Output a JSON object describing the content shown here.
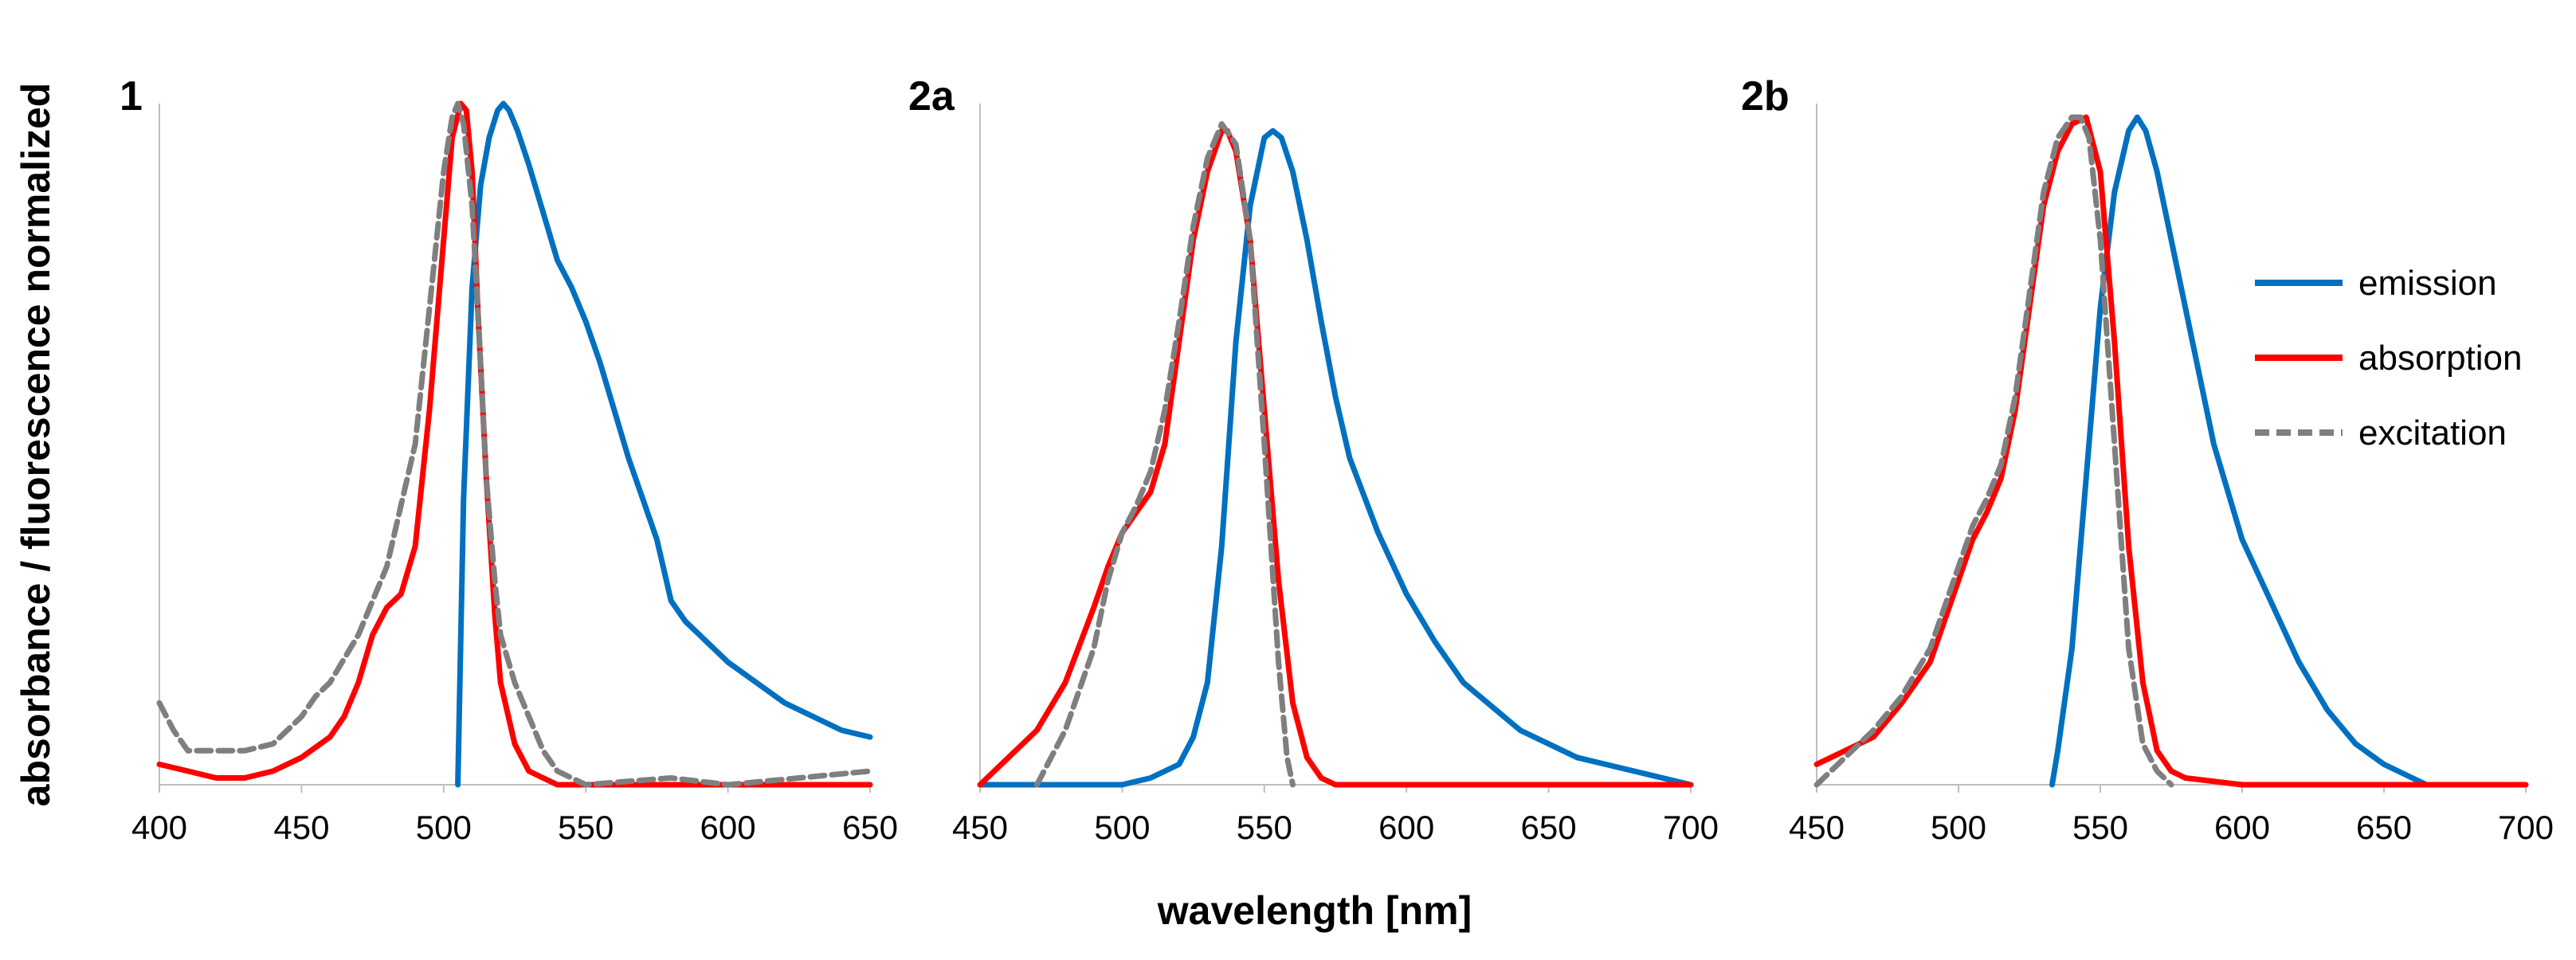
{
  "ylabel": "absorbance / fluorescence normalized",
  "xlabel": "wavelength [nm]",
  "colors": {
    "emission": "#0070C0",
    "absorption": "#FF0000",
    "excitation": "#7F7F7F"
  },
  "legend": {
    "placement": "right of panel 2b",
    "items": [
      {
        "name": "emission",
        "color": "#0070C0",
        "style": "solid"
      },
      {
        "name": "absorption",
        "color": "#FF0000",
        "style": "solid"
      },
      {
        "name": "excitation",
        "color": "#7F7F7F",
        "style": "dashed"
      }
    ]
  },
  "chart_data": [
    {
      "type": "line",
      "panel_label": "1",
      "xlim": [
        400,
        650
      ],
      "ylim": [
        0,
        1
      ],
      "xticks": [
        "400",
        "450",
        "500",
        "550",
        "600",
        "650"
      ],
      "grid": false,
      "series": [
        {
          "name": "emission",
          "color": "#0070C0",
          "dash": false,
          "x": [
            505,
            507,
            510,
            513,
            516,
            519,
            521,
            523,
            526,
            530,
            535,
            540,
            545,
            550,
            555,
            560,
            565,
            570,
            575,
            580,
            585,
            590,
            600,
            610,
            620,
            630,
            640,
            650
          ],
          "y": [
            0.0,
            0.42,
            0.73,
            0.88,
            0.95,
            0.99,
            1.0,
            0.99,
            0.96,
            0.91,
            0.84,
            0.77,
            0.73,
            0.68,
            0.62,
            0.55,
            0.48,
            0.42,
            0.36,
            0.27,
            0.24,
            0.22,
            0.18,
            0.15,
            0.12,
            0.1,
            0.08,
            0.07
          ]
        },
        {
          "name": "absorption",
          "color": "#FF0000",
          "dash": false,
          "x": [
            400,
            410,
            420,
            430,
            440,
            450,
            460,
            465,
            470,
            475,
            480,
            485,
            490,
            495,
            500,
            503,
            506,
            508,
            510,
            512,
            515,
            518,
            520,
            525,
            530,
            535,
            540,
            550,
            600,
            650
          ],
          "y": [
            0.03,
            0.02,
            0.01,
            0.01,
            0.02,
            0.04,
            0.07,
            0.1,
            0.15,
            0.22,
            0.26,
            0.28,
            0.35,
            0.55,
            0.8,
            0.95,
            1.0,
            0.99,
            0.9,
            0.7,
            0.45,
            0.25,
            0.15,
            0.06,
            0.02,
            0.01,
            0.0,
            0.0,
            0.0,
            0.0
          ]
        },
        {
          "name": "excitation",
          "color": "#7F7F7F",
          "dash": true,
          "x": [
            400,
            405,
            410,
            420,
            430,
            440,
            450,
            455,
            460,
            470,
            480,
            490,
            495,
            500,
            503,
            505,
            507,
            510,
            512,
            515,
            518,
            520,
            525,
            530,
            535,
            540,
            545,
            550,
            580,
            600,
            625,
            650
          ],
          "y": [
            0.12,
            0.08,
            0.05,
            0.05,
            0.05,
            0.06,
            0.1,
            0.13,
            0.15,
            0.22,
            0.32,
            0.5,
            0.7,
            0.9,
            0.98,
            1.0,
            0.97,
            0.85,
            0.7,
            0.45,
            0.3,
            0.22,
            0.15,
            0.1,
            0.05,
            0.02,
            0.01,
            0.0,
            0.01,
            0.0,
            0.01,
            0.02
          ]
        }
      ]
    },
    {
      "type": "line",
      "panel_label": "2a",
      "xlim": [
        450,
        700
      ],
      "ylim": [
        0,
        1
      ],
      "xticks": [
        "450",
        "500",
        "550",
        "600",
        "650",
        "700"
      ],
      "grid": false,
      "series": [
        {
          "name": "emission",
          "color": "#0070C0",
          "dash": false,
          "x": [
            450,
            500,
            510,
            520,
            525,
            530,
            535,
            540,
            545,
            550,
            553,
            556,
            560,
            565,
            570,
            575,
            580,
            590,
            600,
            610,
            620,
            640,
            660,
            680,
            700
          ],
          "y": [
            0.0,
            0.0,
            0.01,
            0.03,
            0.07,
            0.15,
            0.35,
            0.65,
            0.85,
            0.95,
            0.96,
            0.95,
            0.9,
            0.8,
            0.68,
            0.57,
            0.48,
            0.37,
            0.28,
            0.21,
            0.15,
            0.08,
            0.04,
            0.02,
            0.0
          ]
        },
        {
          "name": "absorption",
          "color": "#FF0000",
          "dash": false,
          "x": [
            450,
            460,
            470,
            480,
            490,
            495,
            500,
            505,
            510,
            515,
            520,
            525,
            530,
            535,
            537,
            540,
            545,
            550,
            555,
            560,
            565,
            570,
            575,
            600,
            700
          ],
          "y": [
            0.0,
            0.04,
            0.08,
            0.15,
            0.26,
            0.32,
            0.37,
            0.4,
            0.43,
            0.5,
            0.65,
            0.8,
            0.9,
            0.96,
            0.96,
            0.93,
            0.8,
            0.55,
            0.3,
            0.12,
            0.04,
            0.01,
            0.0,
            0.0,
            0.0
          ]
        },
        {
          "name": "excitation",
          "color": "#7F7F7F",
          "dash": true,
          "x": [
            470,
            480,
            490,
            495,
            500,
            505,
            510,
            515,
            520,
            525,
            530,
            535,
            540,
            545,
            550,
            555,
            558,
            560
          ],
          "y": [
            0.0,
            0.08,
            0.2,
            0.3,
            0.37,
            0.41,
            0.46,
            0.55,
            0.68,
            0.82,
            0.92,
            0.97,
            0.94,
            0.8,
            0.5,
            0.18,
            0.04,
            0.0
          ]
        }
      ]
    },
    {
      "type": "line",
      "panel_label": "2b",
      "xlim": [
        450,
        700
      ],
      "ylim": [
        0,
        1
      ],
      "xticks": [
        "450",
        "500",
        "550",
        "600",
        "650",
        "700"
      ],
      "grid": false,
      "series": [
        {
          "name": "emission",
          "color": "#0070C0",
          "dash": false,
          "x": [
            533,
            535,
            540,
            545,
            550,
            555,
            560,
            563,
            566,
            570,
            575,
            580,
            590,
            600,
            610,
            620,
            630,
            640,
            650,
            660,
            665
          ],
          "y": [
            0.0,
            0.05,
            0.2,
            0.45,
            0.7,
            0.87,
            0.96,
            0.98,
            0.96,
            0.9,
            0.8,
            0.7,
            0.5,
            0.36,
            0.27,
            0.18,
            0.11,
            0.06,
            0.03,
            0.01,
            0.0
          ]
        },
        {
          "name": "absorption",
          "color": "#FF0000",
          "dash": false,
          "x": [
            450,
            460,
            470,
            480,
            490,
            500,
            505,
            510,
            515,
            520,
            525,
            530,
            535,
            540,
            545,
            550,
            555,
            560,
            565,
            570,
            575,
            580,
            600,
            650,
            700
          ],
          "y": [
            0.03,
            0.05,
            0.07,
            0.12,
            0.18,
            0.3,
            0.36,
            0.4,
            0.45,
            0.55,
            0.7,
            0.85,
            0.93,
            0.97,
            0.98,
            0.9,
            0.65,
            0.35,
            0.15,
            0.05,
            0.02,
            0.01,
            0.0,
            0.0,
            0.0
          ]
        },
        {
          "name": "excitation",
          "color": "#7F7F7F",
          "dash": true,
          "x": [
            450,
            460,
            470,
            480,
            490,
            500,
            505,
            510,
            515,
            520,
            525,
            530,
            535,
            540,
            543,
            546,
            550,
            555,
            560,
            565,
            570,
            575
          ],
          "y": [
            0.0,
            0.04,
            0.08,
            0.13,
            0.2,
            0.32,
            0.38,
            0.42,
            0.47,
            0.57,
            0.72,
            0.87,
            0.95,
            0.98,
            0.98,
            0.95,
            0.8,
            0.5,
            0.2,
            0.06,
            0.02,
            0.0
          ]
        }
      ]
    }
  ]
}
